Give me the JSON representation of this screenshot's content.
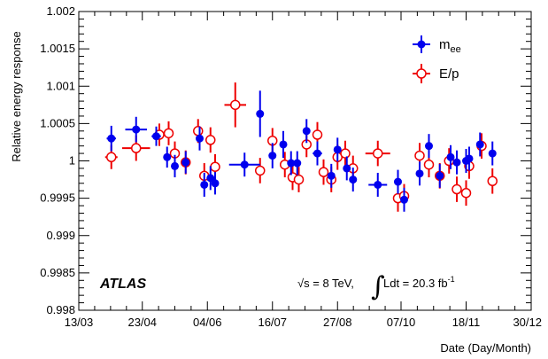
{
  "chart_data": {
    "type": "scatter",
    "xlabel": "Date (Day/Month)",
    "ylabel": "Relative energy response",
    "xlim": [
      0,
      292
    ],
    "ylim": [
      0.998,
      1.002
    ],
    "x_ticks": [
      {
        "v": 0,
        "label": "13/03"
      },
      {
        "v": 41,
        "label": "23/04"
      },
      {
        "v": 83,
        "label": "04/06"
      },
      {
        "v": 125,
        "label": "16/07"
      },
      {
        "v": 167,
        "label": "27/08"
      },
      {
        "v": 208,
        "label": "07/10"
      },
      {
        "v": 250,
        "label": "18/11"
      },
      {
        "v": 292,
        "label": "30/12"
      }
    ],
    "y_ticks": [
      {
        "v": 0.998,
        "label": "0.998"
      },
      {
        "v": 0.9985,
        "label": "0.9985"
      },
      {
        "v": 0.999,
        "label": "0.999"
      },
      {
        "v": 0.9995,
        "label": "0.9995"
      },
      {
        "v": 1.0,
        "label": "1"
      },
      {
        "v": 1.0005,
        "label": "1.0005"
      },
      {
        "v": 1.001,
        "label": "1.001"
      },
      {
        "v": 1.0015,
        "label": "1.0015"
      },
      {
        "v": 1.002,
        "label": "1.002"
      }
    ],
    "legend": {
      "position": "top-right",
      "mee_base": "m",
      "mee_sub": "ee",
      "ep": "E/p"
    },
    "annotations": {
      "experiment": "ATLAS",
      "sqrt": "√s = 8 TeV,",
      "lumi_main": "Ldt = 20.3 fb",
      "lumi_sup": "-1"
    },
    "series": [
      {
        "name": "m_ee",
        "color": "#0000ee",
        "marker": "filled-circle",
        "points": [
          {
            "x": 21,
            "xerr": 3,
            "y": 1.0003,
            "yerr": 0.00017
          },
          {
            "x": 37,
            "xerr": 7,
            "y": 1.00042,
            "yerr": 0.00017
          },
          {
            "x": 50,
            "xerr": 3,
            "y": 1.00033,
            "yerr": 0.00013
          },
          {
            "x": 57,
            "xerr": 1,
            "y": 1.00005,
            "yerr": 0.00014
          },
          {
            "x": 62,
            "xerr": 2,
            "y": 0.99993,
            "yerr": 0.00015
          },
          {
            "x": 69,
            "xerr": 1,
            "y": 0.99998,
            "yerr": 0.00015
          },
          {
            "x": 78,
            "xerr": 1,
            "y": 1.0003,
            "yerr": 0.00016
          },
          {
            "x": 81,
            "xerr": 1,
            "y": 0.99968,
            "yerr": 0.00016
          },
          {
            "x": 85,
            "xerr": 1,
            "y": 0.99977,
            "yerr": 0.00016
          },
          {
            "x": 88,
            "xerr": 1,
            "y": 0.9997,
            "yerr": 0.00015
          },
          {
            "x": 107,
            "xerr": 10,
            "y": 0.99995,
            "yerr": 0.00016
          },
          {
            "x": 117,
            "xerr": 2,
            "y": 1.00063,
            "yerr": 0.00031
          },
          {
            "x": 125,
            "xerr": 1,
            "y": 1.00007,
            "yerr": 0.00017
          },
          {
            "x": 132,
            "xerr": 1,
            "y": 1.00022,
            "yerr": 0.00018
          },
          {
            "x": 137,
            "xerr": 1,
            "y": 0.99997,
            "yerr": 0.00016
          },
          {
            "x": 141,
            "xerr": 1,
            "y": 0.99997,
            "yerr": 0.00016
          },
          {
            "x": 147,
            "xerr": 1,
            "y": 1.0004,
            "yerr": 0.00016
          },
          {
            "x": 154,
            "xerr": 3,
            "y": 1.0001,
            "yerr": 0.00016
          },
          {
            "x": 163,
            "xerr": 1,
            "y": 0.9998,
            "yerr": 0.00016
          },
          {
            "x": 167,
            "xerr": 1,
            "y": 1.00015,
            "yerr": 0.00016
          },
          {
            "x": 173,
            "xerr": 1,
            "y": 0.9999,
            "yerr": 0.00016
          },
          {
            "x": 177,
            "xerr": 1,
            "y": 0.99975,
            "yerr": 0.00016
          },
          {
            "x": 193,
            "xerr": 6,
            "y": 0.99968,
            "yerr": 0.00016
          },
          {
            "x": 206,
            "xerr": 1,
            "y": 0.99972,
            "yerr": 0.00016
          },
          {
            "x": 210,
            "xerr": 1,
            "y": 0.99948,
            "yerr": 0.00016
          },
          {
            "x": 220,
            "xerr": 2,
            "y": 0.99983,
            "yerr": 0.00016
          },
          {
            "x": 226,
            "xerr": 2,
            "y": 1.0002,
            "yerr": 0.00016
          },
          {
            "x": 233,
            "xerr": 2,
            "y": 0.9998,
            "yerr": 0.00016
          },
          {
            "x": 240,
            "xerr": 2,
            "y": 1.00005,
            "yerr": 0.00016
          },
          {
            "x": 244,
            "xerr": 1,
            "y": 0.99998,
            "yerr": 0.00016
          },
          {
            "x": 250,
            "xerr": 1,
            "y": 1.0,
            "yerr": 0.00016
          },
          {
            "x": 252,
            "xerr": 1,
            "y": 1.00003,
            "yerr": 0.00016
          },
          {
            "x": 259,
            "xerr": 1,
            "y": 1.00022,
            "yerr": 0.00016
          },
          {
            "x": 267,
            "xerr": 1,
            "y": 1.0001,
            "yerr": 0.00016
          }
        ]
      },
      {
        "name": "E/p",
        "color": "#ee0000",
        "marker": "open-circle",
        "points": [
          {
            "x": 21,
            "xerr": 4,
            "y": 1.00005,
            "yerr": 0.00016
          },
          {
            "x": 37,
            "xerr": 9,
            "y": 1.00017,
            "yerr": 0.00017
          },
          {
            "x": 52,
            "xerr": 3,
            "y": 1.00035,
            "yerr": 0.00015
          },
          {
            "x": 58,
            "xerr": 2,
            "y": 1.00037,
            "yerr": 0.00016
          },
          {
            "x": 62,
            "xerr": 2,
            "y": 1.0001,
            "yerr": 0.00016
          },
          {
            "x": 69,
            "xerr": 1,
            "y": 0.99998,
            "yerr": 0.00016
          },
          {
            "x": 77,
            "xerr": 1,
            "y": 1.0004,
            "yerr": 0.00016
          },
          {
            "x": 81,
            "xerr": 1,
            "y": 0.9998,
            "yerr": 0.00017
          },
          {
            "x": 85,
            "xerr": 1,
            "y": 1.00028,
            "yerr": 0.00017
          },
          {
            "x": 88,
            "xerr": 1,
            "y": 0.99992,
            "yerr": 0.00017
          },
          {
            "x": 101,
            "xerr": 7,
            "y": 1.00075,
            "yerr": 0.0003
          },
          {
            "x": 117,
            "xerr": 2,
            "y": 0.99987,
            "yerr": 0.00017
          },
          {
            "x": 125,
            "xerr": 1,
            "y": 1.00027,
            "yerr": 0.00017
          },
          {
            "x": 133,
            "xerr": 1,
            "y": 0.99995,
            "yerr": 0.00017
          },
          {
            "x": 138,
            "xerr": 1,
            "y": 0.99978,
            "yerr": 0.00017
          },
          {
            "x": 142,
            "xerr": 1,
            "y": 0.99975,
            "yerr": 0.00017
          },
          {
            "x": 147,
            "xerr": 1,
            "y": 1.00022,
            "yerr": 0.00017
          },
          {
            "x": 154,
            "xerr": 3,
            "y": 1.00035,
            "yerr": 0.00017
          },
          {
            "x": 158,
            "xerr": 1,
            "y": 0.99985,
            "yerr": 0.00017
          },
          {
            "x": 163,
            "xerr": 1,
            "y": 0.99975,
            "yerr": 0.00017
          },
          {
            "x": 167,
            "xerr": 1,
            "y": 1.00005,
            "yerr": 0.00017
          },
          {
            "x": 172,
            "xerr": 1,
            "y": 1.0001,
            "yerr": 0.00017
          },
          {
            "x": 177,
            "xerr": 1,
            "y": 0.9999,
            "yerr": 0.00017
          },
          {
            "x": 193,
            "xerr": 8,
            "y": 1.0001,
            "yerr": 0.00017
          },
          {
            "x": 206,
            "xerr": 2,
            "y": 0.9995,
            "yerr": 0.00018
          },
          {
            "x": 210,
            "xerr": 1,
            "y": 0.99953,
            "yerr": 0.00016
          },
          {
            "x": 220,
            "xerr": 2,
            "y": 1.00007,
            "yerr": 0.00017
          },
          {
            "x": 226,
            "xerr": 2,
            "y": 0.99995,
            "yerr": 0.00017
          },
          {
            "x": 233,
            "xerr": 2,
            "y": 0.9998,
            "yerr": 0.00017
          },
          {
            "x": 239,
            "xerr": 1,
            "y": 1.0,
            "yerr": 0.00017
          },
          {
            "x": 244,
            "xerr": 1,
            "y": 0.99962,
            "yerr": 0.00017
          },
          {
            "x": 250,
            "xerr": 1,
            "y": 0.99957,
            "yerr": 0.00017
          },
          {
            "x": 252,
            "xerr": 1,
            "y": 0.99993,
            "yerr": 0.00017
          },
          {
            "x": 260,
            "xerr": 1,
            "y": 1.0002,
            "yerr": 0.00017
          },
          {
            "x": 267,
            "xerr": 1,
            "y": 0.99973,
            "yerr": 0.00017
          }
        ]
      }
    ]
  }
}
